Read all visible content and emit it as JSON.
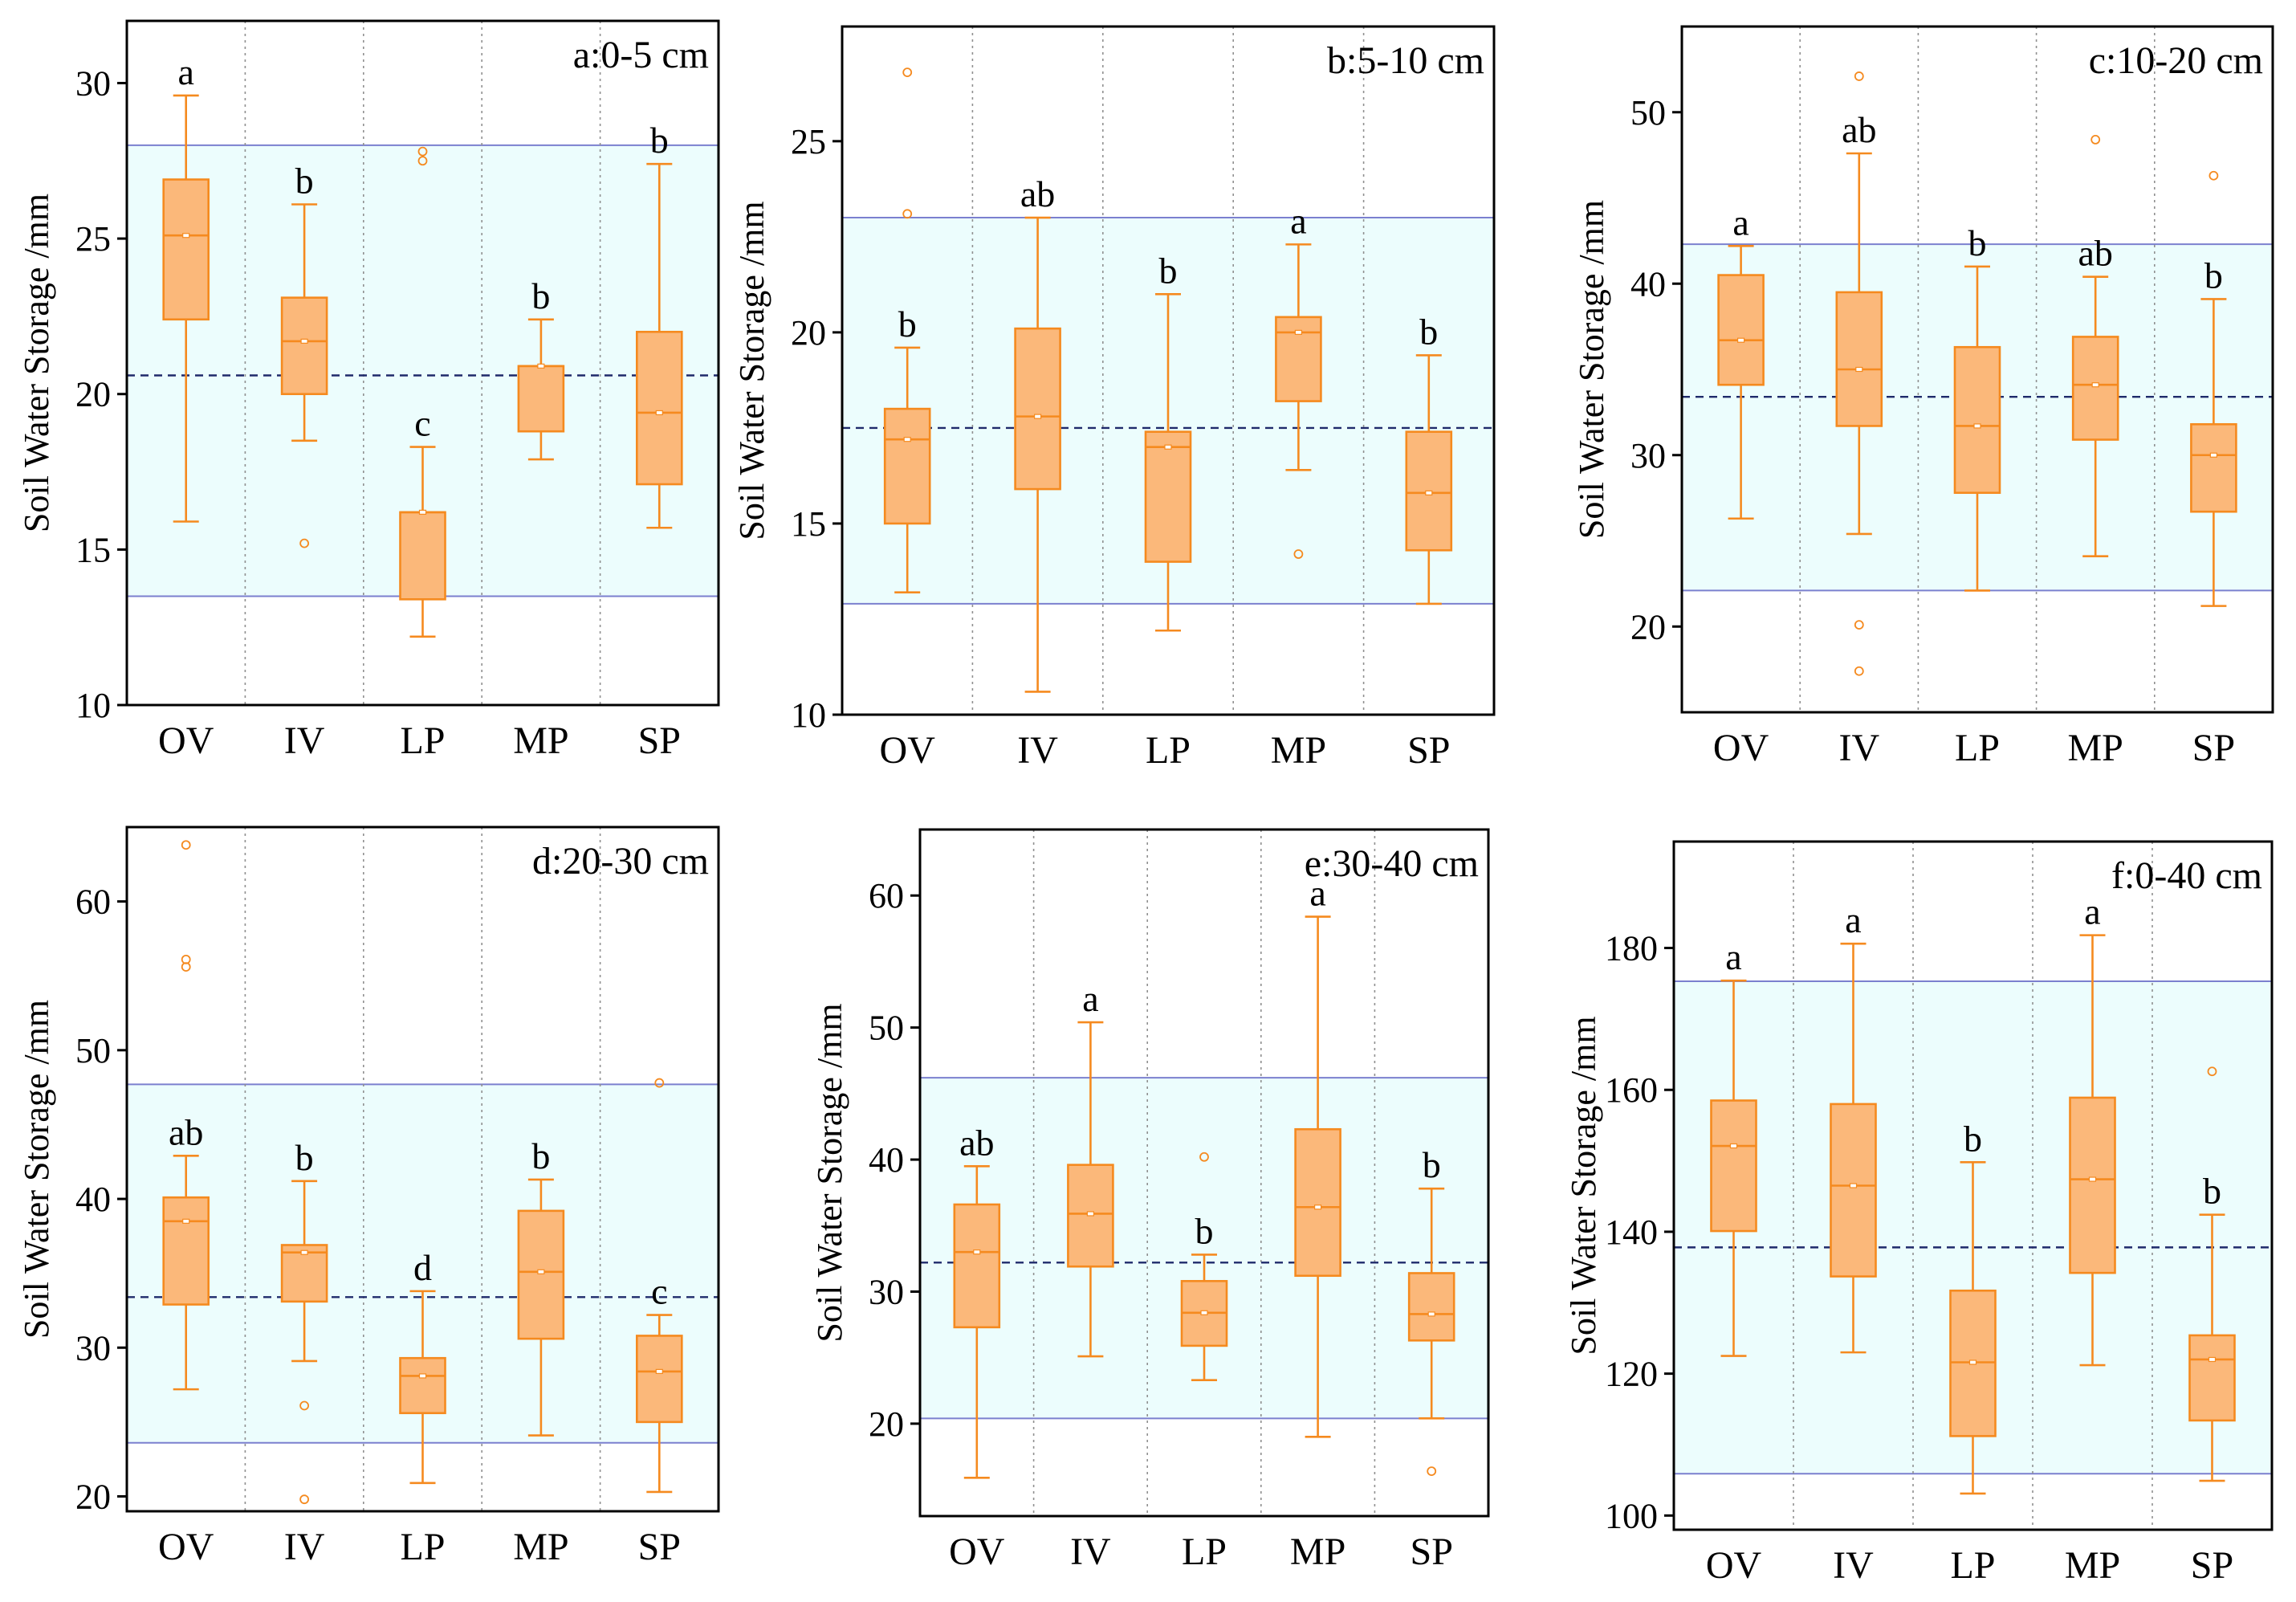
{
  "chart_data": [
    {
      "type": "boxplot",
      "panel_label": "a:0-5 cm",
      "ylabel": "Soil Water Storage /mm",
      "categories": [
        "OV",
        "IV",
        "LP",
        "MP",
        "SP"
      ],
      "ylim": [
        10,
        32
      ],
      "yticks": [
        10,
        15,
        20,
        25,
        30
      ],
      "band": {
        "low": 13.5,
        "high": 28.0,
        "mean": 20.6
      },
      "boxes": [
        {
          "category": "OV",
          "min": 15.9,
          "q1": 22.4,
          "median": 25.1,
          "q3": 26.9,
          "max": 29.6,
          "outliers": [],
          "letter": "a"
        },
        {
          "category": "IV",
          "min": 18.5,
          "q1": 20.0,
          "median": 21.7,
          "q3": 23.1,
          "max": 26.1,
          "outliers": [
            15.2
          ],
          "letter": "b"
        },
        {
          "category": "LP",
          "min": 12.2,
          "q1": 13.4,
          "median": 16.2,
          "q3": 16.2,
          "max": 18.3,
          "outliers": [
            27.5,
            27.8
          ],
          "letter": "c"
        },
        {
          "category": "MP",
          "min": 17.9,
          "q1": 18.8,
          "median": 20.9,
          "q3": 20.9,
          "max": 22.4,
          "outliers": [],
          "letter": "b"
        },
        {
          "category": "SP",
          "min": 15.7,
          "q1": 17.1,
          "median": 19.4,
          "q3": 22.0,
          "max": 27.4,
          "outliers": [],
          "letter": "b"
        }
      ]
    },
    {
      "type": "boxplot",
      "panel_label": "b:5-10 cm",
      "ylabel": "Soil Water Storage /mm",
      "categories": [
        "OV",
        "IV",
        "LP",
        "MP",
        "SP"
      ],
      "ylim": [
        10,
        28
      ],
      "yticks": [
        10,
        15,
        20,
        25
      ],
      "band": {
        "low": 12.9,
        "high": 23.0,
        "mean": 17.5
      },
      "boxes": [
        {
          "category": "OV",
          "min": 13.2,
          "q1": 15.0,
          "median": 17.2,
          "q3": 18.0,
          "max": 19.6,
          "outliers": [
            23.1,
            26.8
          ],
          "letter": "b"
        },
        {
          "category": "IV",
          "min": 10.6,
          "q1": 15.9,
          "median": 17.8,
          "q3": 20.1,
          "max": 23.0,
          "outliers": [],
          "letter": "ab"
        },
        {
          "category": "LP",
          "min": 12.2,
          "q1": 14.0,
          "median": 17.0,
          "q3": 17.4,
          "max": 21.0,
          "outliers": [],
          "letter": "b"
        },
        {
          "category": "MP",
          "min": 16.4,
          "q1": 18.2,
          "median": 20.0,
          "q3": 20.4,
          "max": 22.3,
          "outliers": [
            14.2
          ],
          "letter": "a"
        },
        {
          "category": "SP",
          "min": 12.9,
          "q1": 14.3,
          "median": 15.8,
          "q3": 17.4,
          "max": 19.4,
          "outliers": [],
          "letter": "b"
        }
      ]
    },
    {
      "type": "boxplot",
      "panel_label": "c:10-20 cm",
      "ylabel": "Soil Water Storage /mm",
      "categories": [
        "OV",
        "IV",
        "LP",
        "MP",
        "SP"
      ],
      "ylim": [
        15,
        55
      ],
      "yticks": [
        20,
        30,
        40,
        50
      ],
      "band": {
        "low": 22.1,
        "high": 42.3,
        "mean": 33.4
      },
      "boxes": [
        {
          "category": "OV",
          "min": 26.3,
          "q1": 34.1,
          "median": 36.7,
          "q3": 40.5,
          "max": 42.2,
          "outliers": [],
          "letter": "a"
        },
        {
          "category": "IV",
          "min": 25.4,
          "q1": 31.7,
          "median": 35.0,
          "q3": 39.5,
          "max": 47.6,
          "outliers": [
            17.4,
            20.1,
            52.1
          ],
          "letter": "ab"
        },
        {
          "category": "LP",
          "min": 22.1,
          "q1": 27.8,
          "median": 31.7,
          "q3": 36.3,
          "max": 41.0,
          "outliers": [],
          "letter": "b"
        },
        {
          "category": "MP",
          "min": 24.1,
          "q1": 30.9,
          "median": 34.1,
          "q3": 36.9,
          "max": 40.4,
          "outliers": [
            48.4
          ],
          "letter": "ab"
        },
        {
          "category": "SP",
          "min": 21.2,
          "q1": 26.7,
          "median": 30.0,
          "q3": 31.8,
          "max": 39.1,
          "outliers": [
            46.3
          ],
          "letter": "b"
        }
      ]
    },
    {
      "type": "boxplot",
      "panel_label": "d:20-30 cm",
      "ylabel": "Soil Water Storage /mm",
      "categories": [
        "OV",
        "IV",
        "LP",
        "MP",
        "SP"
      ],
      "ylim": [
        19,
        65
      ],
      "yticks": [
        20,
        30,
        40,
        50,
        60
      ],
      "band": {
        "low": 23.6,
        "high": 47.7,
        "mean": 33.4
      },
      "boxes": [
        {
          "category": "OV",
          "min": 27.2,
          "q1": 32.9,
          "median": 38.5,
          "q3": 40.1,
          "max": 42.9,
          "outliers": [
            55.6,
            56.1,
            63.8
          ],
          "letter": "ab"
        },
        {
          "category": "IV",
          "min": 29.1,
          "q1": 33.1,
          "median": 36.4,
          "q3": 36.9,
          "max": 41.2,
          "outliers": [
            19.8,
            26.1
          ],
          "letter": "b"
        },
        {
          "category": "LP",
          "min": 20.9,
          "q1": 25.6,
          "median": 28.1,
          "q3": 29.3,
          "max": 33.8,
          "outliers": [],
          "letter": "d"
        },
        {
          "category": "MP",
          "min": 24.1,
          "q1": 30.6,
          "median": 35.1,
          "q3": 39.2,
          "max": 41.3,
          "outliers": [],
          "letter": "b"
        },
        {
          "category": "SP",
          "min": 20.3,
          "q1": 25.0,
          "median": 28.4,
          "q3": 30.8,
          "max": 32.2,
          "outliers": [
            47.8
          ],
          "letter": "c"
        }
      ]
    },
    {
      "type": "boxplot",
      "panel_label": "e:30-40 cm",
      "ylabel": "Soil Water Storage /mm",
      "categories": [
        "OV",
        "IV",
        "LP",
        "MP",
        "SP"
      ],
      "ylim": [
        13,
        65
      ],
      "yticks": [
        20,
        30,
        40,
        50,
        60
      ],
      "band": {
        "low": 20.4,
        "high": 46.2,
        "mean": 32.2
      },
      "boxes": [
        {
          "category": "OV",
          "min": 15.9,
          "q1": 27.3,
          "median": 33.0,
          "q3": 36.6,
          "max": 39.5,
          "outliers": [],
          "letter": "ab"
        },
        {
          "category": "IV",
          "min": 25.1,
          "q1": 31.9,
          "median": 35.9,
          "q3": 39.6,
          "max": 50.4,
          "outliers": [],
          "letter": "a"
        },
        {
          "category": "LP",
          "min": 23.3,
          "q1": 25.9,
          "median": 28.4,
          "q3": 30.8,
          "max": 32.8,
          "outliers": [
            40.2
          ],
          "letter": "b"
        },
        {
          "category": "MP",
          "min": 19.0,
          "q1": 31.2,
          "median": 36.4,
          "q3": 42.3,
          "max": 58.4,
          "outliers": [],
          "letter": "a"
        },
        {
          "category": "SP",
          "min": 20.4,
          "q1": 26.3,
          "median": 28.3,
          "q3": 31.4,
          "max": 37.8,
          "outliers": [
            16.4
          ],
          "letter": "b"
        }
      ]
    },
    {
      "type": "boxplot",
      "panel_label": "f:0-40 cm",
      "ylabel": "Soil Water Storage /mm",
      "categories": [
        "OV",
        "IV",
        "LP",
        "MP",
        "SP"
      ],
      "ylim": [
        98,
        195
      ],
      "yticks": [
        100,
        120,
        140,
        160,
        180
      ],
      "band": {
        "low": 105.9,
        "high": 175.3,
        "mean": 137.8
      },
      "boxes": [
        {
          "category": "OV",
          "min": 122.5,
          "q1": 140.1,
          "median": 152.1,
          "q3": 158.5,
          "max": 175.4,
          "outliers": [],
          "letter": "a"
        },
        {
          "category": "IV",
          "min": 123.0,
          "q1": 133.7,
          "median": 146.5,
          "q3": 158.0,
          "max": 180.6,
          "outliers": [],
          "letter": "a"
        },
        {
          "category": "LP",
          "min": 103.1,
          "q1": 111.2,
          "median": 121.6,
          "q3": 131.7,
          "max": 149.8,
          "outliers": [],
          "letter": "b"
        },
        {
          "category": "MP",
          "min": 121.2,
          "q1": 134.2,
          "median": 147.4,
          "q3": 158.9,
          "max": 181.8,
          "outliers": [],
          "letter": "a"
        },
        {
          "category": "SP",
          "min": 104.9,
          "q1": 113.4,
          "median": 122.0,
          "q3": 125.4,
          "max": 142.4,
          "outliers": [
            162.6
          ],
          "letter": "b"
        }
      ]
    }
  ],
  "colors": {
    "box_fill": "#fbb87a",
    "box_stroke": "#f58a1f",
    "band_fill": "#ecfdfd",
    "band_line": "#7b80cf",
    "mean_line": "#1f2a6b",
    "grid": "#909090",
    "axis": "#000000"
  }
}
